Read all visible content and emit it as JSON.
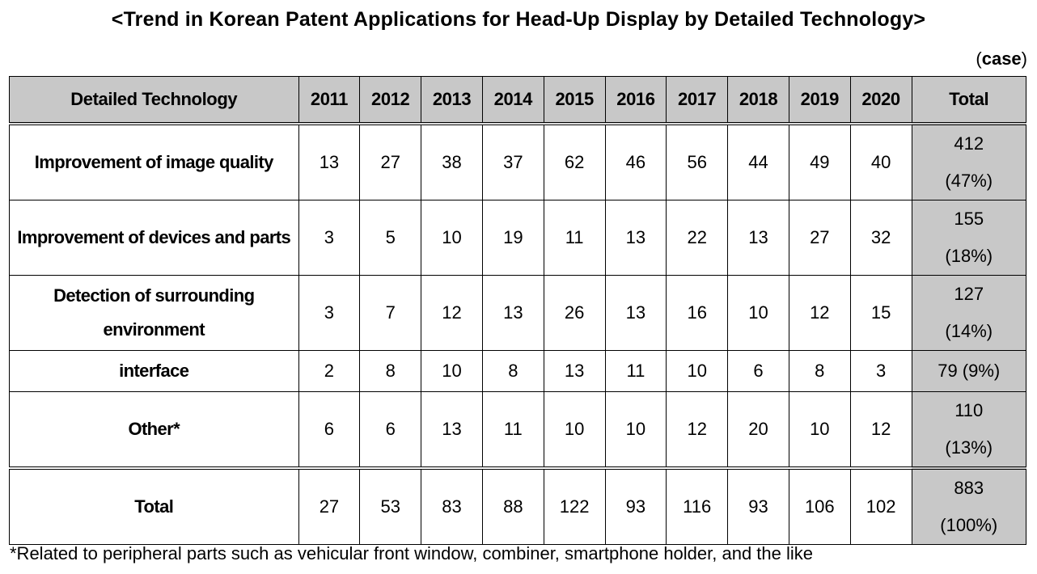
{
  "title": "<Trend in Korean Patent Applications for Head-Up Display by Detailed Technology>",
  "unit": {
    "open": "(",
    "word": "case",
    "close": ")"
  },
  "footnote": "*Related to peripheral parts such as vehicular front window, combiner, smartphone holder, and the like",
  "chart_data": {
    "type": "table",
    "title": "<Trend in Korean Patent Applications for Head-Up Display by Detailed Technology>",
    "unit": "case",
    "columns": [
      "Detailed Technology",
      "2011",
      "2012",
      "2013",
      "2014",
      "2015",
      "2016",
      "2017",
      "2018",
      "2019",
      "2020",
      "Total"
    ],
    "rows": [
      {
        "label": "Improvement of image quality",
        "values": [
          "13",
          "27",
          "38",
          "37",
          "62",
          "46",
          "56",
          "44",
          "49",
          "40"
        ],
        "total": "412",
        "pct": "(47%)"
      },
      {
        "label": "Improvement of devices and parts",
        "values": [
          "3",
          "5",
          "10",
          "19",
          "11",
          "13",
          "22",
          "13",
          "27",
          "32"
        ],
        "total": "155",
        "pct": "(18%)"
      },
      {
        "label": "Detection of surrounding environment",
        "values": [
          "3",
          "7",
          "12",
          "13",
          "26",
          "13",
          "16",
          "10",
          "12",
          "15"
        ],
        "total": "127",
        "pct": "(14%)"
      },
      {
        "label": "interface",
        "values": [
          "2",
          "8",
          "10",
          "8",
          "13",
          "11",
          "10",
          "6",
          "8",
          "3"
        ],
        "total": "79 (9%)",
        "pct": ""
      },
      {
        "label": "Other*",
        "values": [
          "6",
          "6",
          "13",
          "11",
          "10",
          "10",
          "12",
          "20",
          "10",
          "12"
        ],
        "total": "110",
        "pct": "(13%)"
      }
    ],
    "total_row": {
      "label": "Total",
      "values": [
        "27",
        "53",
        "83",
        "88",
        "122",
        "93",
        "116",
        "93",
        "106",
        "102"
      ],
      "total": "883",
      "pct": "(100%)"
    },
    "header_color": "#c8c8c8"
  }
}
